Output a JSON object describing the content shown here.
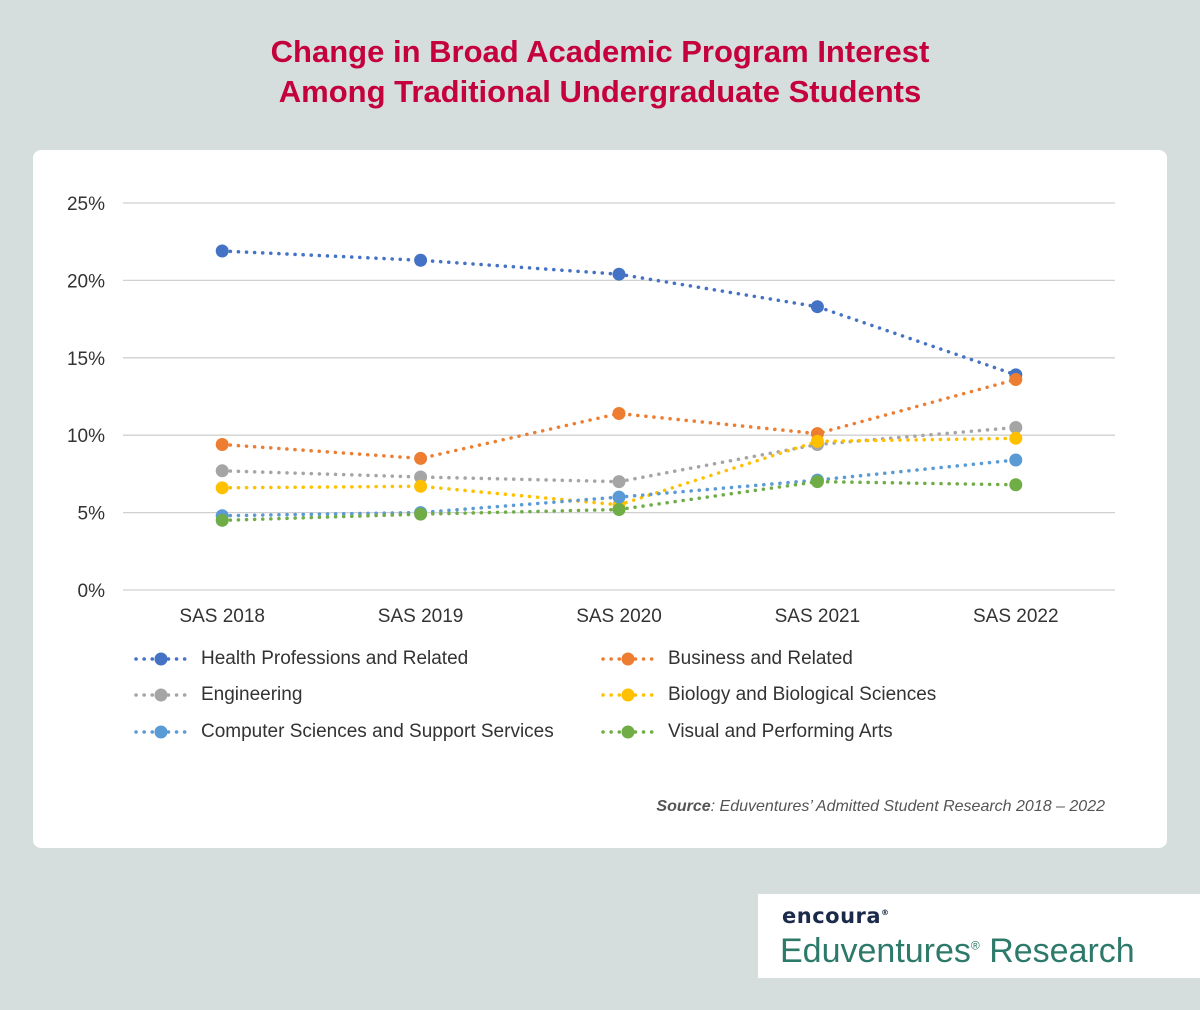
{
  "title_line1": "Change in Broad Academic Program Interest",
  "title_line2": "Among Traditional Undergraduate Students",
  "source_label": "Source",
  "source_text": ": Eduventures’ Admitted Student Research 2018 – 2022",
  "brand": {
    "logo": "encoura",
    "name": "Eduventures",
    "name_suffix": " Research"
  },
  "chart_data": {
    "type": "line",
    "categories": [
      "SAS 2018",
      "SAS 2019",
      "SAS 2020",
      "SAS 2021",
      "SAS 2022"
    ],
    "y_ticks": [
      "0%",
      "5%",
      "10%",
      "15%",
      "20%",
      "25%"
    ],
    "ylim": [
      0,
      25
    ],
    "grid": true,
    "legend_position": "bottom",
    "series": [
      {
        "name": "Health Professions and Related",
        "color": "#4472c4",
        "values": [
          21.9,
          21.3,
          20.4,
          18.3,
          13.9
        ]
      },
      {
        "name": "Business and Related",
        "color": "#ed7d31",
        "values": [
          9.4,
          8.5,
          11.4,
          10.1,
          13.6
        ]
      },
      {
        "name": "Engineering",
        "color": "#a5a5a5",
        "values": [
          7.7,
          7.3,
          7.0,
          9.4,
          10.5
        ]
      },
      {
        "name": "Biology and Biological Sciences",
        "color": "#ffc000",
        "values": [
          6.6,
          6.7,
          5.5,
          9.6,
          9.8
        ]
      },
      {
        "name": "Computer Sciences and Support Services",
        "color": "#5b9bd5",
        "values": [
          4.8,
          5.0,
          6.0,
          7.1,
          8.4
        ]
      },
      {
        "name": "Visual and Performing Arts",
        "color": "#70ad47",
        "values": [
          4.5,
          4.9,
          5.2,
          7.0,
          6.8
        ]
      }
    ]
  }
}
